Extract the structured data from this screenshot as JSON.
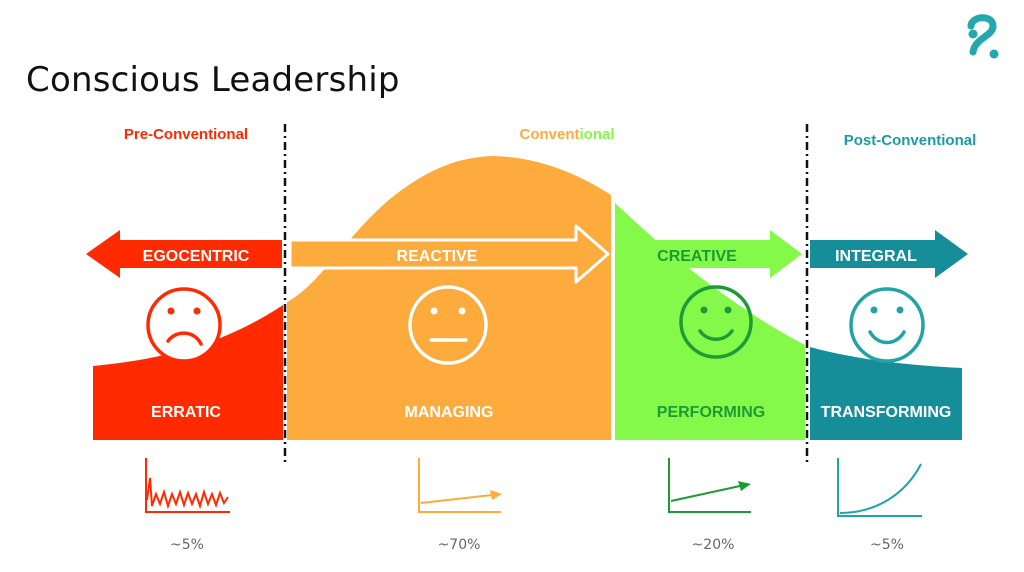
{
  "title": "Conscious Leadership",
  "logo_icon": "brand-logo-icon",
  "colors": {
    "red": "#ff2a00",
    "orange": "#fcab3c",
    "green": "#84f94a",
    "green_dark": "#1e9a37",
    "teal": "#158e9a",
    "teal_light": "#21a4a6"
  },
  "stages": {
    "pre": "Pre-Conventional",
    "conventional_part1": "Convent",
    "conventional_part2": "ional",
    "post": "Post-Conventional"
  },
  "arrows": {
    "egocentric": "EGOCENTRIC",
    "reactive": "REACTIVE",
    "creative": "CREATIVE",
    "integral": "INTEGRAL"
  },
  "faces": {
    "egocentric": "sad-face-icon",
    "reactive": "neutral-face-icon",
    "creative": "smile-face-icon",
    "integral": "happy-face-icon"
  },
  "levels": {
    "erratic": "ERRATIC",
    "managing": "MANAGING",
    "performing": "PERFORMING",
    "transforming": "TRANSFORMING"
  },
  "trend_icons": {
    "erratic": "erratic-line-icon",
    "managing": "flat-growth-icon",
    "performing": "linear-growth-icon",
    "transforming": "exponential-growth-icon"
  },
  "percentages": {
    "erratic": "~5%",
    "managing": "~70%",
    "performing": "~20%",
    "transforming": "~5%"
  }
}
